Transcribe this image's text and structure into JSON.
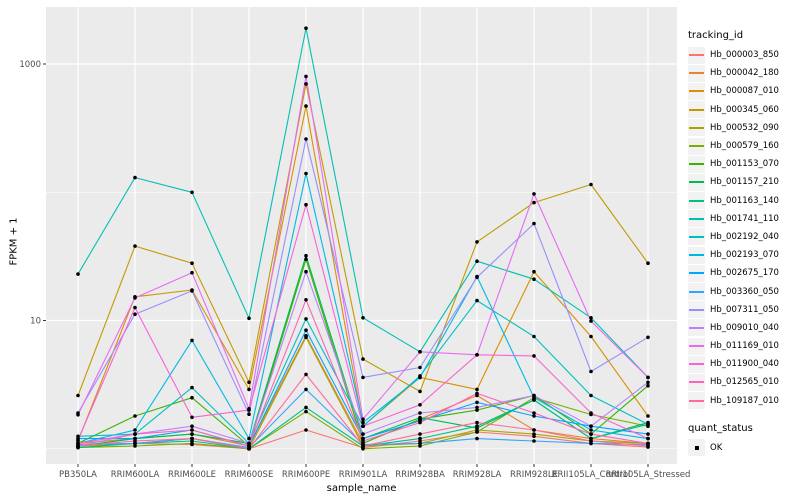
{
  "figure": {
    "background": "#FFFFFF",
    "panel_background": "#EBEBEB",
    "gridline_color": "#FFFFFF",
    "tick_text_color": "#4D4D4D",
    "tick_mark_color": "#333333",
    "point_color": "#000000"
  },
  "chart_data": {
    "type": "line",
    "title": "",
    "xlabel": "sample_name",
    "ylabel": "FPKM + 1",
    "y_scale": "log10",
    "grid": "on",
    "legend_position": "right",
    "y_ticks": [
      {
        "value": 10,
        "label": "10"
      },
      {
        "value": 1000,
        "label": "1000"
      }
    ],
    "y_minor_ticks": [
      1,
      100
    ],
    "ylim": [
      0.7,
      2850
    ],
    "categories": [
      "PB350LA",
      "RRIM600LA",
      "RRIM600LE",
      "RRIM600SE",
      "RRIM600PE",
      "RRIM901LA",
      "RRIM928BA",
      "RRIM928LA",
      "RRIM928LE",
      "RRII105LA_Control",
      "RRII105LA_Stressed"
    ],
    "series": [
      {
        "name": "Hb_000003_850",
        "color": "#F8766D",
        "values": [
          1.05,
          1.1,
          1.08,
          1.0,
          1.4,
          1.02,
          1.15,
          1.35,
          1.25,
          1.1,
          1.03
        ]
      },
      {
        "name": "Hb_000042_180",
        "color": "#EA8331",
        "values": [
          1.1,
          1.2,
          1.3,
          1.05,
          7.6,
          1.1,
          1.7,
          2.6,
          1.4,
          1.2,
          1.1
        ]
      },
      {
        "name": "Hb_000087_010",
        "color": "#D89000",
        "values": [
          1.15,
          15.3,
          17.3,
          2.9,
          470,
          1.5,
          3.6,
          2.9,
          24,
          7.5,
          1.8
        ]
      },
      {
        "name": "Hb_000345_060",
        "color": "#C09B00",
        "values": [
          2.6,
          38,
          28,
          3.3,
          700,
          5.0,
          2.8,
          41,
          83,
          115,
          28
        ]
      },
      {
        "name": "Hb_000532_090",
        "color": "#A3A500",
        "values": [
          1.05,
          1.1,
          1.2,
          1.0,
          7.4,
          1.05,
          1.1,
          1.4,
          1.3,
          1.15,
          1.1
        ]
      },
      {
        "name": "Hb_000579_160",
        "color": "#7CAE00",
        "values": [
          1.02,
          1.05,
          1.1,
          1.0,
          1.95,
          1.0,
          1.05,
          1.35,
          2.5,
          1.85,
          1.5
        ]
      },
      {
        "name": "Hb_001153_070",
        "color": "#39B600",
        "values": [
          1.1,
          1.8,
          2.5,
          1.05,
          30,
          1.1,
          1.7,
          2.0,
          2.6,
          1.3,
          3.1
        ]
      },
      {
        "name": "Hb_001157_210",
        "color": "#00BB4E",
        "values": [
          1.05,
          1.2,
          1.3,
          1.1,
          32,
          1.2,
          1.75,
          1.45,
          2.4,
          1.2,
          1.6
        ]
      },
      {
        "name": "Hb_001163_140",
        "color": "#00C087",
        "values": [
          1.02,
          1.1,
          1.15,
          1.0,
          2.1,
          1.05,
          1.2,
          1.5,
          2.4,
          1.2,
          1.55
        ]
      },
      {
        "name": "Hb_001741_110",
        "color": "#00C0B2",
        "values": [
          23,
          130,
          100,
          10.4,
          1900,
          10.5,
          5.7,
          29,
          21,
          10.5,
          3.6
        ]
      },
      {
        "name": "Hb_002192_040",
        "color": "#00BFC4",
        "values": [
          1.25,
          1.3,
          3.0,
          1.1,
          10.3,
          1.5,
          3.7,
          14.3,
          7.5,
          2.6,
          1.55
        ]
      },
      {
        "name": "Hb_002193_070",
        "color": "#00B8E7",
        "values": [
          1.1,
          1.4,
          7.0,
          1.2,
          140,
          1.6,
          3.6,
          22,
          2.5,
          1.4,
          1.2
        ]
      },
      {
        "name": "Hb_002675_170",
        "color": "#00A5FF",
        "values": [
          1.2,
          1.2,
          1.4,
          1.05,
          8.4,
          1.2,
          1.65,
          2.3,
          1.8,
          1.5,
          1.3
        ]
      },
      {
        "name": "Hb_003360_050",
        "color": "#35A2FF",
        "values": [
          1.08,
          1.1,
          1.2,
          1.02,
          2.9,
          1.08,
          1.1,
          1.2,
          1.15,
          1.1,
          1.08
        ]
      },
      {
        "name": "Hb_007311_050",
        "color": "#9590FF",
        "values": [
          1.9,
          11.2,
          17.0,
          1.86,
          260,
          3.6,
          4.3,
          21.7,
          57,
          4.0,
          7.4
        ]
      },
      {
        "name": "Hb_009010_040",
        "color": "#BC80FF",
        "values": [
          1.05,
          1.3,
          1.5,
          1.1,
          24,
          1.3,
          1.9,
          2.1,
          2.6,
          1.5,
          3.3
        ]
      },
      {
        "name": "Hb_011169_010",
        "color": "#E76BF3",
        "values": [
          1.84,
          15.0,
          23.6,
          2.05,
          800,
          1.7,
          5.7,
          5.4,
          97,
          9.9,
          3.6
        ]
      },
      {
        "name": "Hb_011900_040",
        "color": "#FA62DB",
        "values": [
          1.17,
          12.6,
          1.76,
          2.0,
          80,
          1.5,
          2.2,
          5.4,
          5.3,
          1.9,
          1.2
        ]
      },
      {
        "name": "Hb_012565_010",
        "color": "#FF62BC",
        "values": [
          1.1,
          1.3,
          1.4,
          1.05,
          14.5,
          1.15,
          1.6,
          2.7,
          1.9,
          1.3,
          1.1
        ]
      },
      {
        "name": "Hb_109187_010",
        "color": "#FF6A98",
        "values": [
          1.05,
          1.15,
          1.2,
          1.0,
          3.8,
          1.05,
          1.3,
          1.6,
          1.4,
          1.15,
          1.05
        ]
      }
    ],
    "legend": {
      "title": "tracking_id"
    },
    "legend2": {
      "title": "quant_status",
      "items": [
        {
          "label": "OK",
          "marker": "black-square"
        }
      ]
    }
  }
}
